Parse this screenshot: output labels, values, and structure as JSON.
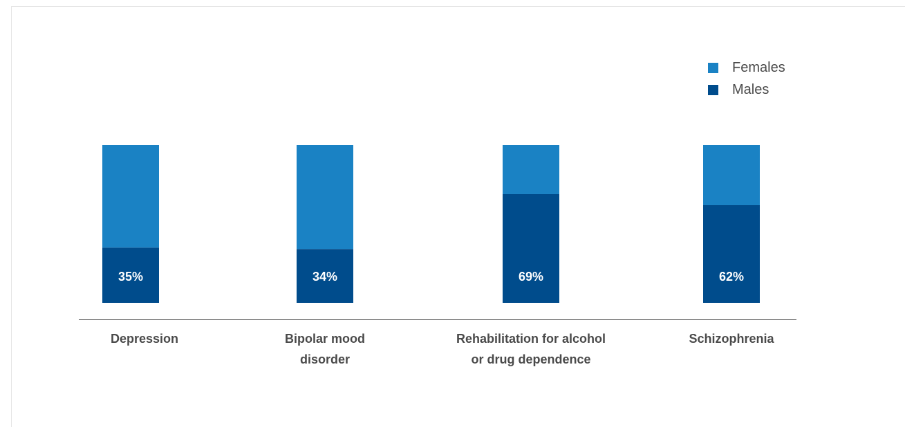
{
  "chart_data": {
    "type": "bar",
    "stacked": true,
    "categories": [
      "Depression",
      "Bipolar mood\ndisorder",
      "Rehabilitation for alcohol\nor drug dependence",
      "Schizophrenia"
    ],
    "series": [
      {
        "name": "Males",
        "values": [
          35,
          34,
          69,
          62
        ],
        "color": "#004c8c"
      },
      {
        "name": "Females",
        "values": [
          65,
          66,
          31,
          38
        ],
        "color": "#1a82c4"
      }
    ],
    "data_labels": [
      "35%",
      "34%",
      "69%",
      "62%"
    ],
    "ylim": [
      0,
      100
    ],
    "legend_position": "top-right",
    "grid": false
  },
  "legend": {
    "females_label": "Females",
    "males_label": "Males",
    "females_color": "#1a82c4",
    "males_color": "#004c8c"
  }
}
